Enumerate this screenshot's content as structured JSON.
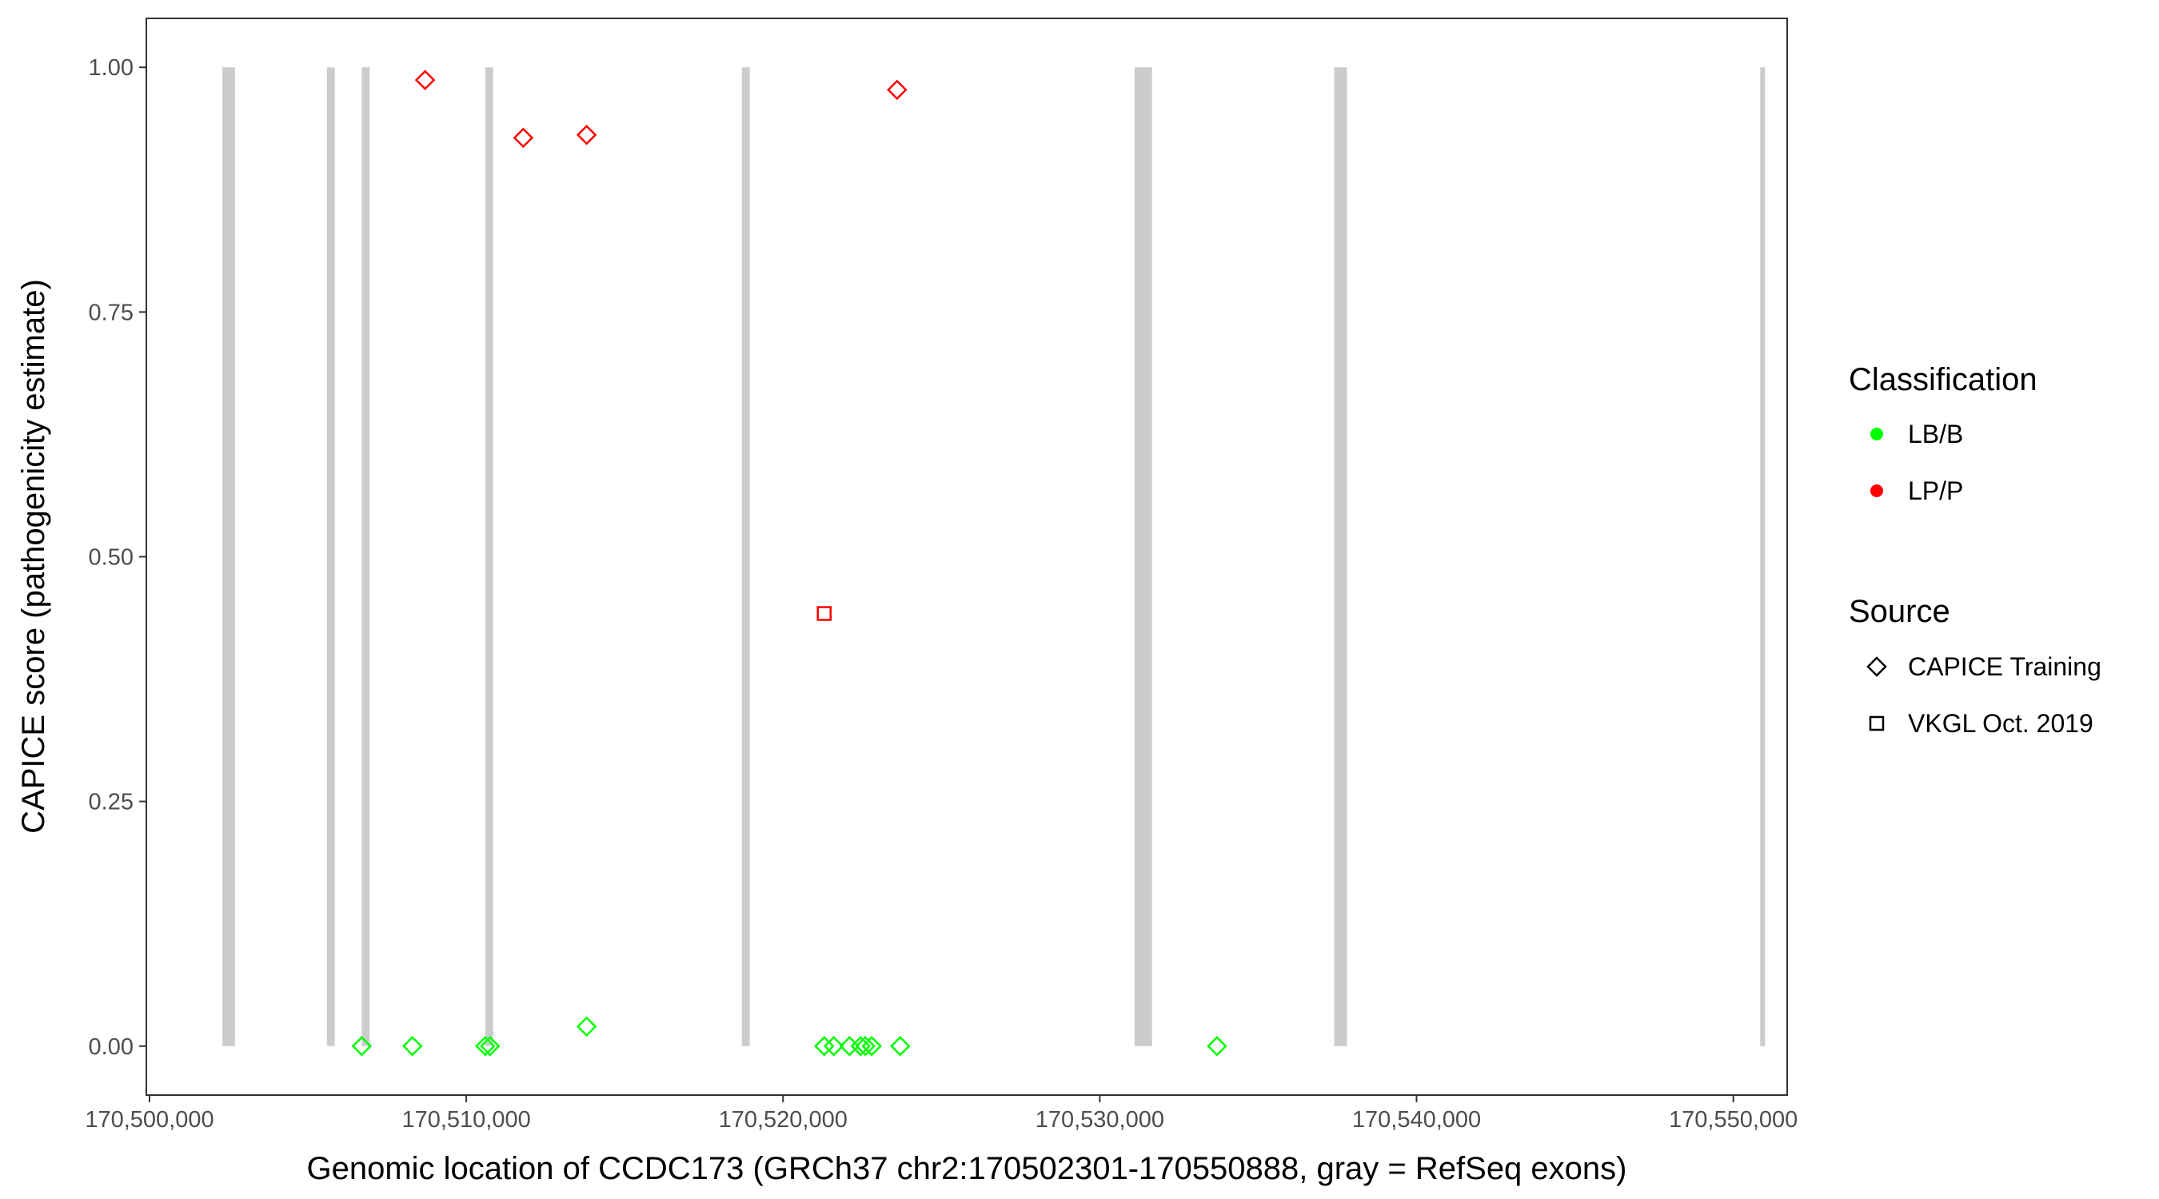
{
  "chart_data": {
    "type": "scatter",
    "xlabel": "Genomic location of CCDC173 (GRCh37 chr2:170502301-170550888, gray = RefSeq exons)",
    "ylabel": "CAPICE score (pathogenicity estimate)",
    "xlim": [
      170499900,
      170551700
    ],
    "ylim": [
      -0.05,
      1.05
    ],
    "x_ticks": [
      170500000,
      170510000,
      170520000,
      170530000,
      170540000,
      170550000
    ],
    "x_tick_labels": [
      "170,500,000",
      "170,510,000",
      "170,520,000",
      "170,530,000",
      "170,540,000",
      "170,550,000"
    ],
    "y_ticks": [
      0,
      0.25,
      0.5,
      0.75,
      1.0
    ],
    "y_tick_labels": [
      "0.00",
      "0.25",
      "0.50",
      "0.75",
      "1.00"
    ],
    "grid": false,
    "exons": [
      {
        "start": 170502301,
        "end": 170502700
      },
      {
        "start": 170505600,
        "end": 170505850
      },
      {
        "start": 170506700,
        "end": 170506950
      },
      {
        "start": 170510600,
        "end": 170510850
      },
      {
        "start": 170518700,
        "end": 170518950
      },
      {
        "start": 170531100,
        "end": 170531650
      },
      {
        "start": 170537400,
        "end": 170537800
      },
      {
        "start": 170550850,
        "end": 170551000
      }
    ],
    "exon_color": "#cccccc",
    "legend_placement": "right",
    "legend": {
      "classification_title": "Classification",
      "classification_items": [
        {
          "label": "LB/B",
          "color": "#00ff00"
        },
        {
          "label": "LP/P",
          "color": "#ff0000"
        }
      ],
      "source_title": "Source",
      "source_items": [
        {
          "label": "CAPICE Training",
          "shape": "diamond"
        },
        {
          "label": "VKGL Oct. 2019",
          "shape": "square"
        }
      ]
    },
    "points": [
      {
        "x": 170508700,
        "y": 0.987,
        "class": "LP/P",
        "source": "CAPICE Training"
      },
      {
        "x": 170511800,
        "y": 0.928,
        "class": "LP/P",
        "source": "CAPICE Training"
      },
      {
        "x": 170513800,
        "y": 0.931,
        "class": "LP/P",
        "source": "CAPICE Training"
      },
      {
        "x": 170523600,
        "y": 0.977,
        "class": "LP/P",
        "source": "CAPICE Training"
      },
      {
        "x": 170521300,
        "y": 0.442,
        "class": "LP/P",
        "source": "VKGL Oct. 2019"
      },
      {
        "x": 170506700,
        "y": 0.0,
        "class": "LB/B",
        "source": "CAPICE Training"
      },
      {
        "x": 170508300,
        "y": 0.0,
        "class": "LB/B",
        "source": "CAPICE Training"
      },
      {
        "x": 170510600,
        "y": 0.0,
        "class": "LB/B",
        "source": "CAPICE Training"
      },
      {
        "x": 170510750,
        "y": 0.0,
        "class": "LB/B",
        "source": "CAPICE Training"
      },
      {
        "x": 170513800,
        "y": 0.02,
        "class": "LB/B",
        "source": "CAPICE Training"
      },
      {
        "x": 170521300,
        "y": 0.0,
        "class": "LB/B",
        "source": "CAPICE Training"
      },
      {
        "x": 170521600,
        "y": 0.0,
        "class": "LB/B",
        "source": "CAPICE Training"
      },
      {
        "x": 170522100,
        "y": 0.0,
        "class": "LB/B",
        "source": "CAPICE Training"
      },
      {
        "x": 170522450,
        "y": 0.0,
        "class": "LB/B",
        "source": "CAPICE Training"
      },
      {
        "x": 170522600,
        "y": 0.0,
        "class": "LB/B",
        "source": "CAPICE Training"
      },
      {
        "x": 170522800,
        "y": 0.0,
        "class": "LB/B",
        "source": "CAPICE Training"
      },
      {
        "x": 170523700,
        "y": 0.0,
        "class": "LB/B",
        "source": "CAPICE Training"
      },
      {
        "x": 170533700,
        "y": 0.0,
        "class": "LB/B",
        "source": "CAPICE Training"
      }
    ]
  }
}
